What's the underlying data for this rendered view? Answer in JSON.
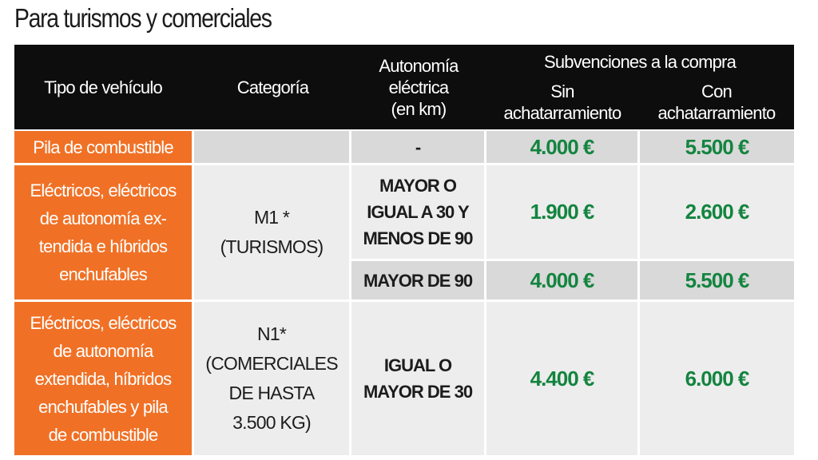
{
  "title": "Para turismos y comerciales",
  "header": {
    "tipo": "Tipo de vehículo",
    "categoria": "Categoría",
    "autonomia": "Autonomía\neléctrica\n(en km)",
    "subvenciones": "Subvenciones a la compra",
    "sin": "Sin\nachatarramiento",
    "con": "Con\nachatarramiento"
  },
  "rows": [
    {
      "tipo": "Pila de combustible",
      "categoria": "",
      "autonomia": "-",
      "sin": "4.000 €",
      "con": "5.500 €"
    },
    {
      "tipo": "Eléctricos, eléctricos\nde autonomía ex-\ntendida e híbridos\nenchufables",
      "categoria": "M1 *\n(TURISMOS)",
      "sub": [
        {
          "autonomia": "MAYOR O\nIGUAL A 30 Y\nMENOS DE 90",
          "sin": "1.900 €",
          "con": "2.600 €"
        },
        {
          "autonomia": "MAYOR DE 90",
          "sin": "4.000 €",
          "con": "5.500 €"
        }
      ]
    },
    {
      "tipo": "Eléctricos, eléctricos\nde autonomía\nextendida, híbridos\nenchufables y pila\nde combustible",
      "categoria": "N1*\n(COMERCIALES\nDE HASTA\n3.500 KG)",
      "autonomia": "IGUAL O\nMAYOR DE 30",
      "sin": "4.400 €",
      "con": "6.000 €"
    }
  ]
}
